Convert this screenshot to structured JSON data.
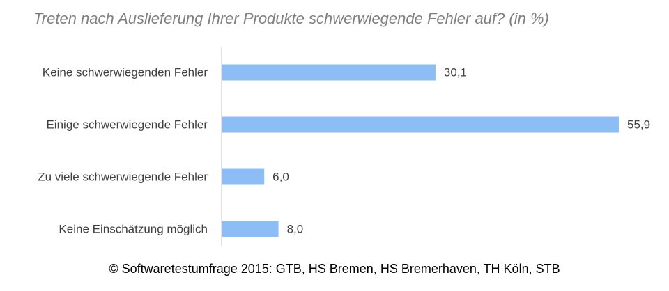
{
  "title": "Treten nach Auslieferung Ihrer Produkte schwerwiegende Fehler auf? (in %)",
  "footer": "© Softwaretestumfrage 2015: GTB, HS Bremen, HS Bremerhaven, TH Köln, STB",
  "colors": {
    "bar": "#8cbdf4",
    "axis": "#d9d9d9",
    "title": "#7f7f7f",
    "text": "#404040"
  },
  "chart_data": {
    "type": "bar",
    "orientation": "horizontal",
    "categories": [
      "Keine schwerwiegenden Fehler",
      "Einige schwerwiegende Fehler",
      "Zu viele schwerwiegende Fehler",
      "Keine Einschätzung möglich"
    ],
    "values": [
      30.1,
      55.9,
      6.0,
      8.0
    ],
    "value_labels": [
      "30,1",
      "55,9",
      "6,0",
      "8,0"
    ],
    "title": "Treten nach Auslieferung Ihrer Produkte schwerwiegende Fehler auf? (in %)",
    "xlabel": "",
    "ylabel": "",
    "xlim": [
      0,
      55.9
    ],
    "grid": false,
    "legend": "none"
  }
}
